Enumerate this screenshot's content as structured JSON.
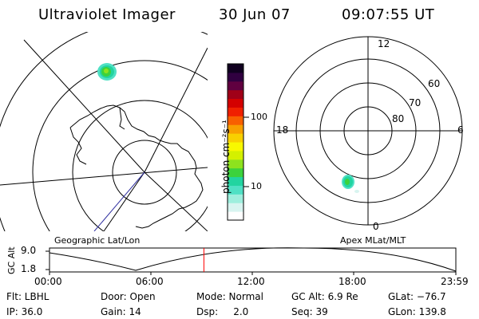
{
  "header": {
    "instrument": "Ultraviolet Imager",
    "date": "30 Jun 07",
    "time": "09:07:55 UT"
  },
  "left_map": {
    "label": "Geographic Lat/Lon"
  },
  "right_map": {
    "label": "Apex MLat/MLT",
    "mlt_labels": [
      "12",
      "18",
      "6",
      "0"
    ],
    "mlat_labels": [
      "60",
      "70",
      "80"
    ]
  },
  "colorbar": {
    "unit_label": "photon cm⁻²s⁻¹",
    "tick_labels": [
      "100",
      "10"
    ],
    "scale": "log",
    "colors": [
      "#ffffff",
      "#d8f4f0",
      "#9eeedd",
      "#4fe0c4",
      "#22d4a0",
      "#3cd23c",
      "#8ee21e",
      "#d4f000",
      "#f8f800",
      "#f8d000",
      "#f8a000",
      "#f86000",
      "#f02000",
      "#d40000",
      "#a00018",
      "#600040",
      "#300040",
      "#100020"
    ]
  },
  "altitude_panel": {
    "ylabel": "GC Alt",
    "y_ticks": [
      "9.0",
      "1.8"
    ],
    "x_ticks": [
      "00:00",
      "06:00",
      "12:00",
      "18:00",
      "23:59"
    ],
    "current_time_fraction": 0.38,
    "line_color": "#000000",
    "marker_color": "#ff0000"
  },
  "status": {
    "flt": "Flt: LBHL",
    "door": "Door: Open",
    "mode": "Mode: Normal",
    "gc_alt": "GC Alt: 6.9 Re",
    "glat": "GLat: −76.7",
    "ip": "IP: 36.0",
    "gain": "Gain: 14",
    "dsp": "Dsp:     2.0",
    "seq": "Seq: 39",
    "glon": "GLon: 139.8"
  }
}
